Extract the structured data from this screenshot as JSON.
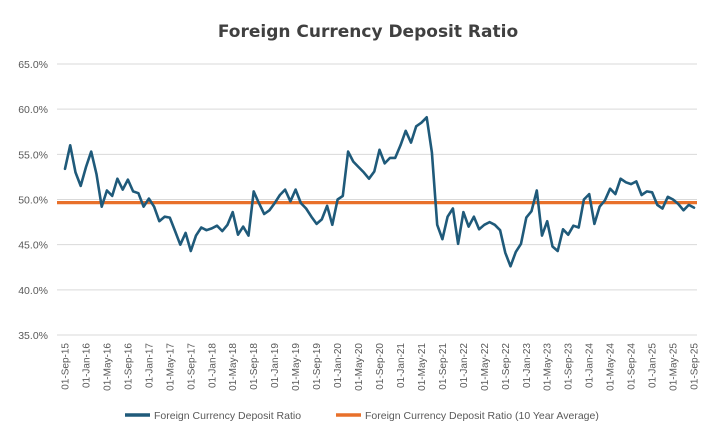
{
  "chart_data": {
    "type": "line",
    "title": "Foreign Currency Deposit Ratio",
    "xlabel": "",
    "ylabel": "",
    "ylim": [
      35.0,
      65.0
    ],
    "y_ticks": [
      "35.0%",
      "40.0%",
      "45.0%",
      "50.0%",
      "55.0%",
      "60.0%",
      "65.0%"
    ],
    "y_tick_values": [
      35,
      40,
      45,
      50,
      55,
      60,
      65
    ],
    "x_ticks": [
      "01-Sep-15",
      "01-Jan-16",
      "01-May-16",
      "01-Sep-16",
      "01-Jan-17",
      "01-May-17",
      "01-Sep-17",
      "01-Jan-18",
      "01-May-18",
      "01-Sep-18",
      "01-Jan-19",
      "01-May-19",
      "01-Sep-19",
      "01-Jan-20",
      "01-May-20",
      "01-Sep-20",
      "01-Jan-21",
      "01-May-21",
      "01-Sep-21",
      "01-Jan-22",
      "01-May-22",
      "01-Sep-22",
      "01-Jan-23",
      "01-May-23",
      "01-Sep-23",
      "01-Jan-24",
      "01-May-24",
      "01-Sep-24",
      "01-Jan-25",
      "01-May-25",
      "01-Sep-25"
    ],
    "grid": true,
    "legend_position": "bottom",
    "series": [
      {
        "name": "Foreign Currency Deposit Ratio",
        "color": "#1f5a7a",
        "x": [
          "2015-09",
          "2015-10",
          "2015-11",
          "2015-12",
          "2016-01",
          "2016-02",
          "2016-03",
          "2016-04",
          "2016-05",
          "2016-06",
          "2016-07",
          "2016-08",
          "2016-09",
          "2016-10",
          "2016-11",
          "2016-12",
          "2017-01",
          "2017-02",
          "2017-03",
          "2017-04",
          "2017-05",
          "2017-06",
          "2017-07",
          "2017-08",
          "2017-09",
          "2017-10",
          "2017-11",
          "2017-12",
          "2018-01",
          "2018-02",
          "2018-03",
          "2018-04",
          "2018-05",
          "2018-06",
          "2018-07",
          "2018-08",
          "2018-09",
          "2018-10",
          "2018-11",
          "2018-12",
          "2019-01",
          "2019-02",
          "2019-03",
          "2019-04",
          "2019-05",
          "2019-06",
          "2019-07",
          "2019-08",
          "2019-09",
          "2019-10",
          "2019-11",
          "2019-12",
          "2020-01",
          "2020-02",
          "2020-03",
          "2020-04",
          "2020-05",
          "2020-06",
          "2020-07",
          "2020-08",
          "2020-09",
          "2020-10",
          "2020-11",
          "2020-12",
          "2021-01",
          "2021-02",
          "2021-03",
          "2021-04",
          "2021-05",
          "2021-06",
          "2021-07",
          "2021-08",
          "2021-09",
          "2021-10",
          "2021-11",
          "2021-12",
          "2022-01",
          "2022-02",
          "2022-03",
          "2022-04",
          "2022-05",
          "2022-06",
          "2022-07",
          "2022-08",
          "2022-09",
          "2022-10",
          "2022-11",
          "2022-12",
          "2023-01",
          "2023-02",
          "2023-03",
          "2023-04",
          "2023-05",
          "2023-06",
          "2023-07",
          "2023-08",
          "2023-09",
          "2023-10",
          "2023-11",
          "2023-12",
          "2024-01",
          "2024-02",
          "2024-03",
          "2024-04",
          "2024-05",
          "2024-06",
          "2024-07",
          "2024-08",
          "2024-09",
          "2024-10",
          "2024-11",
          "2024-12",
          "2025-01",
          "2025-02",
          "2025-03",
          "2025-04",
          "2025-05",
          "2025-06",
          "2025-07",
          "2025-08",
          "2025-09"
        ],
        "values": [
          53.4,
          56.0,
          53.0,
          51.5,
          53.6,
          55.3,
          52.8,
          49.2,
          51.0,
          50.4,
          52.3,
          51.1,
          52.2,
          50.9,
          50.7,
          49.2,
          50.1,
          49.2,
          47.6,
          48.1,
          48.0,
          46.5,
          45.0,
          46.3,
          44.3,
          46.0,
          46.9,
          46.6,
          46.8,
          47.1,
          46.5,
          47.2,
          48.6,
          46.1,
          47.0,
          46.0,
          50.9,
          49.6,
          48.4,
          48.8,
          49.6,
          50.5,
          51.1,
          49.8,
          51.1,
          49.6,
          49.0,
          48.1,
          47.3,
          47.8,
          49.3,
          47.2,
          50.0,
          50.4,
          55.3,
          54.2,
          53.6,
          53.0,
          52.3,
          53.1,
          55.5,
          54.0,
          54.6,
          54.6,
          56.0,
          57.6,
          56.3,
          58.1,
          58.5,
          59.1,
          55.2,
          47.2,
          45.6,
          48.1,
          49.0,
          45.1,
          48.6,
          47.0,
          48.1,
          46.7,
          47.2,
          47.5,
          47.2,
          46.6,
          44.1,
          42.6,
          44.2,
          45.1,
          48.0,
          48.7,
          51.0,
          46.0,
          47.6,
          44.8,
          44.3,
          46.7,
          46.1,
          47.1,
          46.9,
          50.0,
          50.6,
          47.3,
          49.2,
          49.9,
          51.2,
          50.6,
          52.3,
          51.9,
          51.7,
          52.0,
          50.5,
          50.9,
          50.8,
          49.4,
          49.0,
          50.3,
          50.0,
          49.5,
          48.8,
          49.4,
          49.1
        ]
      },
      {
        "name": "Foreign Currency Deposit Ratio (10 Year Average)",
        "color": "#e8702a",
        "value": 49.65
      }
    ]
  }
}
